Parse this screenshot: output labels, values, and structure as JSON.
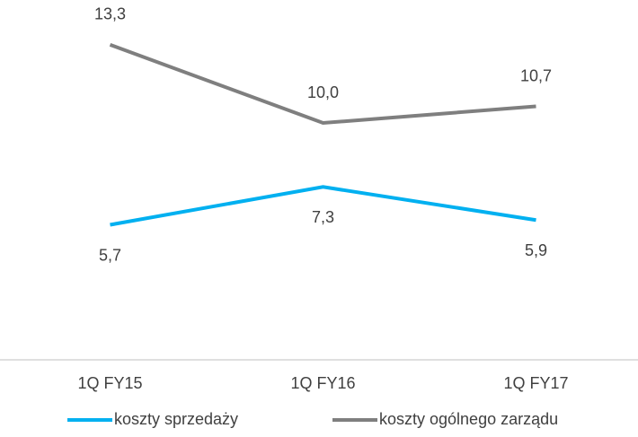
{
  "chart_data": {
    "type": "line",
    "categories": [
      "1Q FY15",
      "1Q FY16",
      "1Q FY17"
    ],
    "series": [
      {
        "name": "koszty sprzedaży",
        "color": "#00b0f0",
        "values": [
          5.7,
          7.3,
          5.9
        ],
        "value_labels": [
          "5,7",
          "7,3",
          "5,9"
        ]
      },
      {
        "name": "koszty ogólnego zarządu",
        "color": "#7f7f7f",
        "values": [
          13.3,
          10.0,
          10.7
        ],
        "value_labels": [
          "13,3",
          "10,0",
          "10,7"
        ]
      }
    ],
    "ylim": [
      0,
      15
    ],
    "legend": "bottom"
  }
}
